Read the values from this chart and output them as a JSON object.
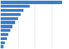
{
  "values": [
    910,
    430,
    335,
    300,
    250,
    215,
    175,
    145,
    115,
    90,
    65,
    45
  ],
  "bar_color": "#3a7dc9",
  "background_color": "#ffffff",
  "grid_color": "#d0d0d0",
  "grid_linestyle": "--",
  "bar_height": 0.72,
  "figsize": [
    1.0,
    0.71
  ],
  "dpi": 100,
  "xlim": [
    0,
    1000
  ],
  "n_gridlines": 4
}
